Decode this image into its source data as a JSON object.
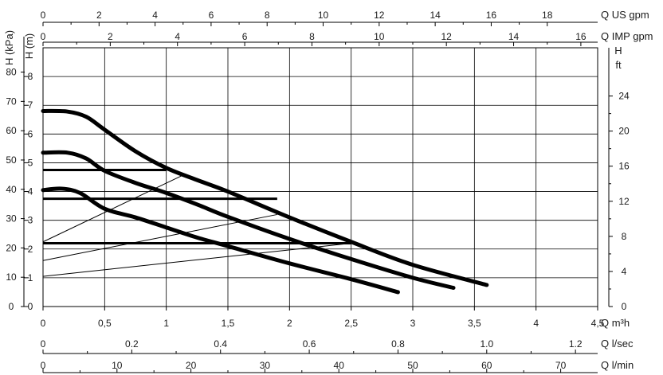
{
  "chart_data": {
    "type": "line",
    "x": {
      "label": "Q m³h",
      "range": [
        0,
        4.5
      ],
      "ticks": [
        "0",
        "0,5",
        "1",
        "1,5",
        "2",
        "2,5",
        "3",
        "3,5",
        "4",
        "4,5"
      ]
    },
    "y": {
      "label": "H (m)",
      "range": [
        0,
        9
      ],
      "ticks": [
        "0",
        "1",
        "2",
        "3",
        "4",
        "5",
        "6",
        "7",
        "8"
      ]
    },
    "secondary_axes": [
      {
        "side": "top",
        "label": "Q US gpm",
        "max": 19.8,
        "step": 2,
        "ticks": [
          "0",
          "2",
          "4",
          "6",
          "8",
          "10",
          "12",
          "14",
          "16",
          "18"
        ]
      },
      {
        "side": "top",
        "label": "Q IMP gpm",
        "max": 16.5,
        "step": 2,
        "ticks": [
          "0",
          "2",
          "4",
          "6",
          "8",
          "10",
          "12",
          "14",
          "16"
        ]
      },
      {
        "side": "bottom",
        "label": "Q l/sec",
        "max": 1.25,
        "step": 0.2,
        "ticks": [
          "0",
          "0.2",
          "0.4",
          "0.6",
          "0.8",
          "1.0",
          "1.2"
        ]
      },
      {
        "side": "bottom",
        "label": "Q l/min",
        "max": 75,
        "step": 10,
        "ticks": [
          "0",
          "10",
          "20",
          "30",
          "40",
          "50",
          "60",
          "70"
        ]
      },
      {
        "side": "left",
        "label": "H (kPa)",
        "max": 88.3,
        "step": 10,
        "ticks": [
          "0",
          "10",
          "20",
          "30",
          "40",
          "50",
          "60",
          "70",
          "80"
        ]
      },
      {
        "side": "right",
        "label": "H",
        "sublabel": "ft",
        "max": 29.5,
        "step": 4,
        "ticks": [
          "0",
          "4",
          "8",
          "12",
          "16",
          "20",
          "24"
        ]
      }
    ],
    "series": [
      {
        "style": "curve",
        "x": [
          0,
          0.2,
          0.35,
          0.5,
          0.75,
          1,
          1.25,
          1.5,
          2,
          2.5,
          3,
          3.6
        ],
        "y": [
          6.8,
          6.78,
          6.6,
          6.15,
          5.4,
          4.82,
          4.4,
          4.0,
          3.1,
          2.25,
          1.45,
          0.75
        ]
      },
      {
        "style": "curve",
        "x": [
          0,
          0.2,
          0.35,
          0.5,
          0.75,
          1,
          1.25,
          1.5,
          2,
          2.5,
          3,
          3.33
        ],
        "y": [
          5.35,
          5.35,
          5.15,
          4.72,
          4.3,
          3.95,
          3.55,
          3.12,
          2.35,
          1.65,
          1.0,
          0.65
        ]
      },
      {
        "style": "curve",
        "x": [
          0,
          0.15,
          0.3,
          0.5,
          0.75,
          1,
          1.25,
          1.5,
          2,
          2.5,
          2.88
        ],
        "y": [
          4.05,
          4.1,
          3.95,
          3.4,
          3.1,
          2.75,
          2.4,
          2.1,
          1.5,
          0.95,
          0.5
        ]
      },
      {
        "style": "flat",
        "x": [
          0,
          1
        ],
        "y": [
          4.75,
          4.75
        ]
      },
      {
        "style": "flat",
        "x": [
          0,
          1.9
        ],
        "y": [
          3.75,
          3.75
        ]
      },
      {
        "style": "flat",
        "x": [
          0,
          2.5
        ],
        "y": [
          2.2,
          2.2
        ]
      },
      {
        "style": "thin",
        "x": [
          0,
          1.15
        ],
        "y": [
          2.25,
          4.6
        ]
      },
      {
        "style": "thin",
        "x": [
          0,
          1.9
        ],
        "y": [
          1.6,
          3.2
        ]
      },
      {
        "style": "thin",
        "x": [
          0,
          2.5
        ],
        "y": [
          1.05,
          2.2
        ]
      }
    ],
    "grid": true,
    "colors": {
      "line": "#000000",
      "grid": "#000000",
      "text": "#1a1a1a"
    }
  }
}
